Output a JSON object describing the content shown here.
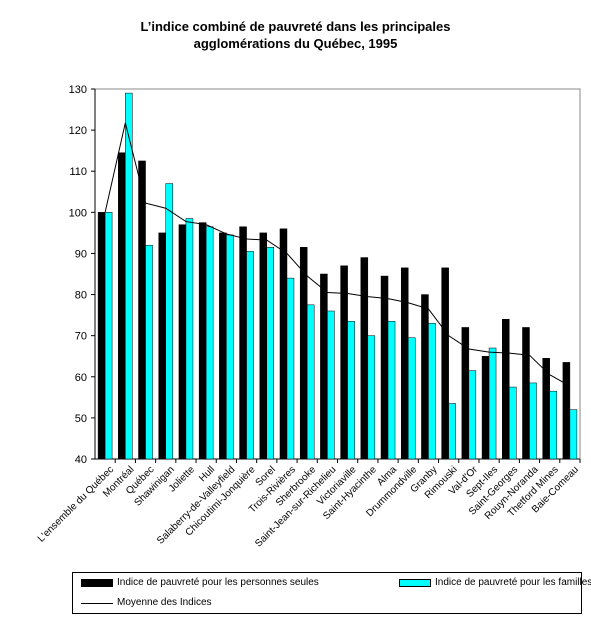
{
  "title_lines": [
    "L’indice combiné de pauvreté dans les principales",
    "agglomérations du Québec, 1995"
  ],
  "chart_data": {
    "type": "bar",
    "title": "L’indice combiné de pauvreté dans les principales agglomérations du Québec, 1995",
    "categories": [
      "L'ensemble du Québec",
      "Montréal",
      "Québec",
      "Shawinigan",
      "Joliette",
      "Hull",
      "Salaberry-de-Valleyfield",
      "Chicoutimi-Jonquière",
      "Sorel",
      "Trois-Rivières",
      "Sherbrooke",
      "Saint-Jean-sur-Richelieu",
      "Victoriaville",
      "Saint-Hyacinthe",
      "Alma",
      "Drummondville",
      "Granby",
      "Rimouski",
      "Val-d'Or",
      "Sept-Iles",
      "Saint-Georges",
      "Rouyn-Noranda",
      "Thetford Mines",
      "Baie-Comeau"
    ],
    "series": [
      {
        "name": "Indice de pauvreté pour les personnes seules",
        "values": [
          100,
          114.5,
          112.5,
          95,
          97,
          97.5,
          95,
          96.5,
          95,
          96,
          91.5,
          85,
          87,
          89,
          84.5,
          86.5,
          80,
          86.5,
          72,
          65,
          74,
          72,
          64.5,
          63.5
        ]
      },
      {
        "name": "Indice de pauvreté pour les familles",
        "values": [
          100,
          129,
          92,
          107,
          98.5,
          96.5,
          94.5,
          90.5,
          91.5,
          84,
          77.5,
          76,
          73.5,
          70,
          73.5,
          69.5,
          73,
          53.5,
          61.5,
          67,
          57.5,
          58.5,
          56.5,
          52
        ]
      },
      {
        "name": "Moyenne des Indices",
        "values": [
          100,
          121.75,
          102.25,
          101,
          97.75,
          97,
          94.75,
          93.5,
          93.25,
          90,
          84.5,
          80.5,
          80.25,
          79.5,
          79,
          78,
          76.5,
          70,
          66.75,
          66,
          65.75,
          65.25,
          60.5,
          57.75
        ]
      }
    ],
    "ylim": [
      40,
      130
    ],
    "yticks": [
      40,
      50,
      60,
      70,
      80,
      90,
      100,
      110,
      120,
      130
    ],
    "grid": false,
    "legend": "bottom",
    "colors": {
      "seules": "#000000",
      "familles": "#00ffff",
      "moyenne": "#000000"
    }
  }
}
